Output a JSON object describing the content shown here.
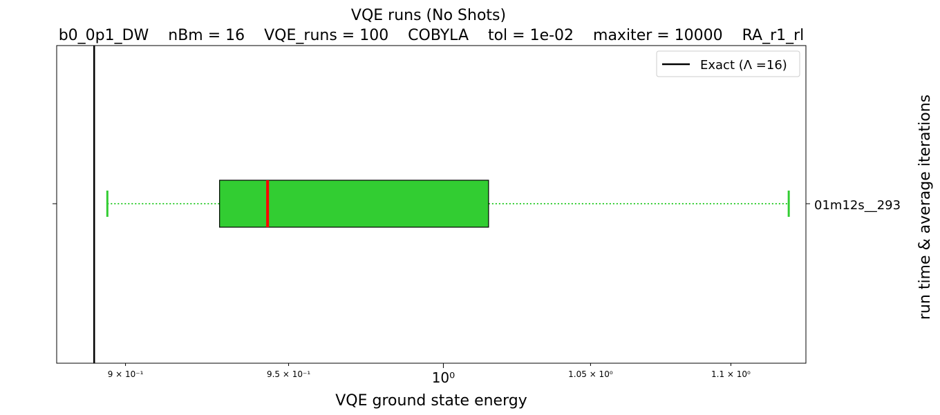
{
  "chart_data": {
    "type": "boxplot",
    "title": "VQE runs (No Shots)",
    "subtitle": "b0_0p1_DW    nBm = 16    VQE_runs = 100    COBYLA    tol = 1e-02    maxiter = 10000    RA_r1_rl",
    "xlabel": "VQE ground state energy",
    "ylabel_right": "run time & average iterations",
    "x_scale": "log",
    "xlim": [
      0.8797,
      1.1277
    ],
    "x_ticks": [
      {
        "value": 0.9,
        "label": "9 × 10⁻¹",
        "major": false
      },
      {
        "value": 0.95,
        "label": "9.5 × 10⁻¹",
        "major": false
      },
      {
        "value": 1.0,
        "label": "10⁰",
        "major": true
      },
      {
        "value": 1.05,
        "label": "1.05 × 10⁰",
        "major": false
      },
      {
        "value": 1.1,
        "label": "1.1 × 10⁰",
        "major": false
      }
    ],
    "categories": [
      "01m12s__293"
    ],
    "box": {
      "whisker_low": 0.8946,
      "q1": 0.9285,
      "median": 0.9434,
      "q3": 1.0151,
      "whisker_high": 1.1213
    },
    "exact": {
      "value": 0.8907,
      "label": "Exact (Λ =16)"
    },
    "legend_position": "upper right",
    "grid": false,
    "colors": {
      "box_fill": "#32cd32",
      "median": "#ff0000",
      "whisker": "#32cd32",
      "exact_line": "#000000"
    }
  }
}
